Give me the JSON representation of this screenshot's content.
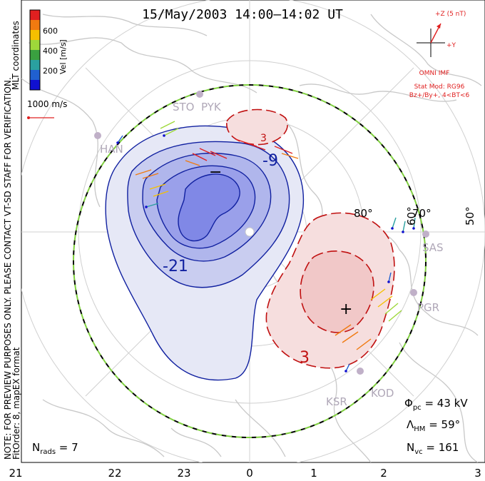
{
  "title": "15/May/2003 14:00–14:02 UT",
  "colorbar": {
    "label": "Vel [m/s]",
    "ticks": [
      "600",
      "400",
      "200"
    ],
    "colors": [
      "#e02020",
      "#f07a10",
      "#f5c000",
      "#9ed83a",
      "#3aa040",
      "#2aa0a0",
      "#2060d0",
      "#1010d0"
    ]
  },
  "coords_label": "MLT coordinates",
  "scale_vector_label": "1000 m/s",
  "side_note_1": "NOTE: FOR PREVIEW PURPOSES ONLY. PLEASE CONTACT VT-SD STAFF FOR VERIFICATION.",
  "side_note_2": "FitOrder: 8, mapEX format",
  "imf": {
    "z_label": "+Z (5 nT)",
    "y_label": "+Y",
    "source": "OMNI IMF",
    "model_line1": "Stat Mod: RG96",
    "model_line2": "Bz+/By+, 4<BT<6"
  },
  "stations": [
    "STO",
    "PYK",
    "HAN",
    "SAS",
    "PGR",
    "KSR",
    "KOD"
  ],
  "contour_labels": {
    "neg_small": "-9",
    "neg_large": "-21",
    "pos": "3",
    "pos_top": "3"
  },
  "extrema": {
    "min": "−",
    "max": "+"
  },
  "lat_labels": [
    "80°",
    "70°",
    "60°",
    "50°"
  ],
  "stats": {
    "phi_pc": "43 kV",
    "lambda_hm": "59°",
    "n_vc": "161",
    "n_rads": "7"
  },
  "mlt_ticks": [
    "21",
    "22",
    "23",
    "0",
    "1",
    "2",
    "3"
  ],
  "colors": {
    "negative": "#1020a0",
    "positive": "#c01010",
    "coast": "#c8c8c8",
    "hmb_green": "#80d040"
  }
}
